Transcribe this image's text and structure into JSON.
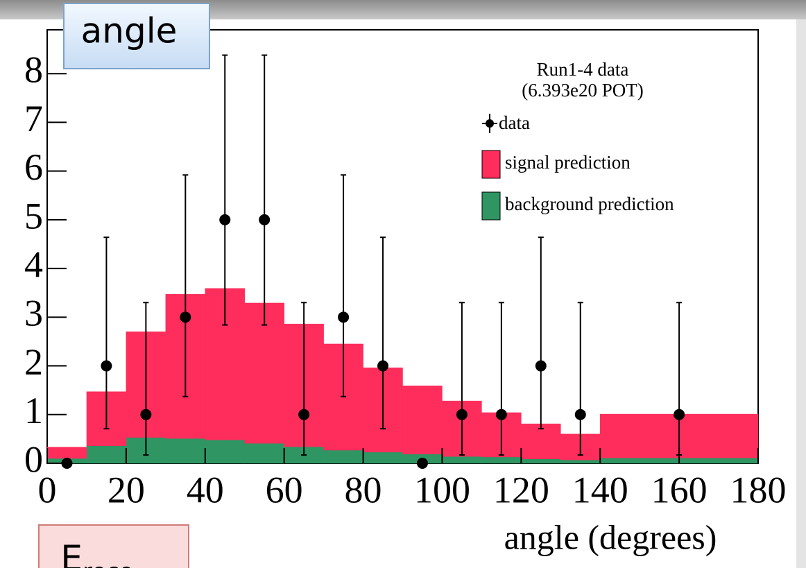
{
  "slide": {
    "box_label": "angle",
    "next_box_label": "E",
    "next_box_subscript": "reco"
  },
  "chart_data": {
    "type": "histogram",
    "xlabel": "angle (degrees)",
    "legend_header": [
      "Run1-4 data",
      "(6.393e20 POT)"
    ],
    "bins": [
      0,
      10,
      20,
      30,
      40,
      50,
      60,
      70,
      80,
      90,
      100,
      110,
      120,
      130,
      140,
      180
    ],
    "series": [
      {
        "name": "background prediction",
        "color": "#2f9563",
        "values": [
          0.1,
          0.36,
          0.53,
          0.51,
          0.48,
          0.41,
          0.34,
          0.27,
          0.23,
          0.19,
          0.14,
          0.13,
          0.09,
          0.07,
          0.11
        ]
      },
      {
        "name": "signal prediction",
        "color": "#fe2d5c",
        "values": [
          0.23,
          1.11,
          2.17,
          2.96,
          3.11,
          2.88,
          2.52,
          2.18,
          1.73,
          1.4,
          1.14,
          0.91,
          0.72,
          0.53,
          0.9
        ]
      }
    ],
    "data_points": {
      "name": "data",
      "color": "#000000",
      "x": [
        5,
        15,
        25,
        35,
        45,
        55,
        65,
        75,
        85,
        95,
        105,
        115,
        125,
        135,
        160
      ],
      "values": [
        0,
        2,
        1,
        3,
        5,
        5,
        1,
        3,
        2,
        0,
        1,
        1,
        2,
        1,
        1
      ],
      "errors_minus": [
        null,
        1.29,
        0.83,
        1.63,
        2.16,
        2.16,
        0.83,
        1.63,
        1.29,
        null,
        0.83,
        0.83,
        1.29,
        0.83,
        0.83
      ],
      "errors_plus": [
        null,
        2.64,
        2.3,
        2.92,
        3.38,
        3.38,
        2.3,
        2.92,
        2.64,
        null,
        2.3,
        2.3,
        2.64,
        2.3,
        2.3
      ]
    },
    "xlim": [
      0,
      180
    ],
    "ylim": [
      0,
      8.9
    ],
    "xticks": [
      0,
      20,
      40,
      60,
      80,
      100,
      120,
      140,
      160,
      180
    ],
    "yticks": [
      0,
      1,
      2,
      3,
      4,
      5,
      6,
      7,
      8
    ]
  }
}
